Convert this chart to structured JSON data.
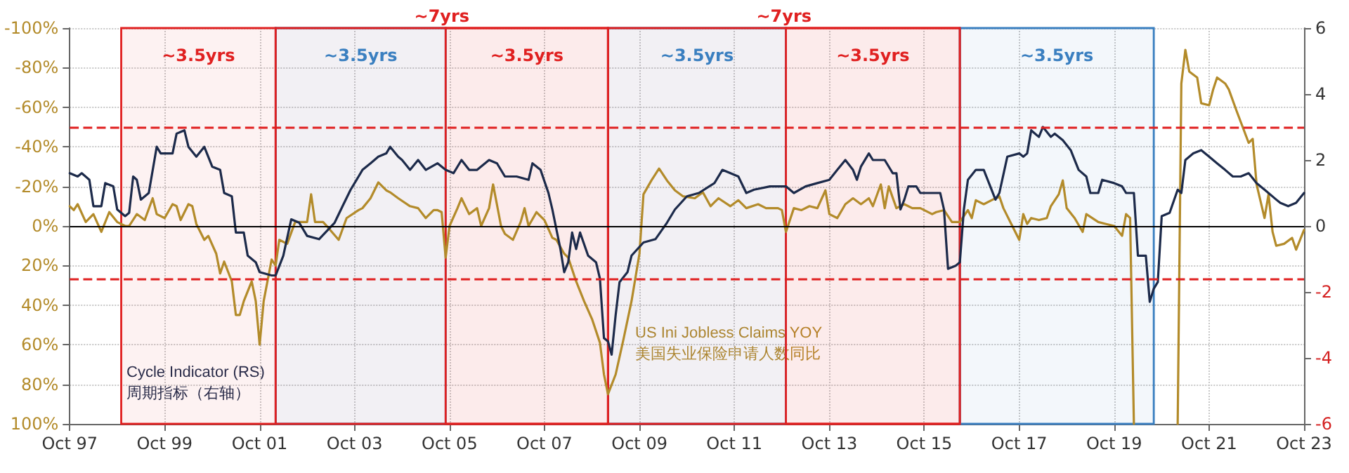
{
  "chart_data": {
    "type": "line",
    "ylabel": null,
    "xlim": [
      "1997-10",
      "2023-10"
    ],
    "xticks": [
      {
        "value": "1997-10",
        "label": "Oct 97"
      },
      {
        "value": "1999-10",
        "label": "Oct 99"
      },
      {
        "value": "2001-10",
        "label": "Oct 01"
      },
      {
        "value": "2003-10",
        "label": "Oct 03"
      },
      {
        "value": "2005-10",
        "label": "Oct 05"
      },
      {
        "value": "2007-10",
        "label": "Oct 07"
      },
      {
        "value": "2009-10",
        "label": "Oct 09"
      },
      {
        "value": "2011-10",
        "label": "Oct 11"
      },
      {
        "value": "2013-10",
        "label": "Oct 13"
      },
      {
        "value": "2015-10",
        "label": "Oct 15"
      },
      {
        "value": "2017-10",
        "label": "Oct 17"
      },
      {
        "value": "2019-10",
        "label": "Oct 19"
      },
      {
        "value": "2021-10",
        "label": "Oct 21"
      },
      {
        "value": "2023-10",
        "label": "Oct 23"
      }
    ],
    "ylim": [
      100,
      -100
    ],
    "yticks": [
      {
        "value": -100,
        "label": "-100%"
      },
      {
        "value": -80,
        "label": "-80%"
      },
      {
        "value": -60,
        "label": "-60%"
      },
      {
        "value": -40,
        "label": "-40%"
      },
      {
        "value": -20,
        "label": "-20%"
      },
      {
        "value": 0,
        "label": "0%"
      },
      {
        "value": 20,
        "label": "20%"
      },
      {
        "value": 40,
        "label": "40%"
      },
      {
        "value": 60,
        "label": "60%"
      },
      {
        "value": 80,
        "label": "80%"
      },
      {
        "value": 100,
        "label": "100%"
      }
    ],
    "y2lim": [
      -6,
      6
    ],
    "y2ticks": [
      -6,
      -4,
      -2,
      0,
      2,
      4,
      6
    ],
    "grid": true,
    "legend": false,
    "line_style": "solid",
    "series": [
      {
        "name": "US Ini Jobless Claims YOY\n美国失业保险申请人数同比",
        "color": "#b38b2a",
        "axis": "y",
        "x": [
          "1997-10",
          "1997-11",
          "1997-12",
          "1998-02",
          "1998-04",
          "1998-06",
          "1998-08",
          "1998-10",
          "1998-12",
          "1999-01",
          "1999-03",
          "1999-05",
          "1999-07",
          "1999-08",
          "1999-10",
          "1999-12",
          "2000-01",
          "2000-02",
          "2000-04",
          "2000-05",
          "2000-06",
          "2000-08",
          "2000-09",
          "2000-11",
          "2000-12",
          "2001-01",
          "2001-03",
          "2001-04",
          "2001-05",
          "2001-06",
          "2001-08",
          "2001-09",
          "2001-10",
          "2001-11",
          "2002-01",
          "2002-02",
          "2002-03",
          "2002-05",
          "2002-07",
          "2002-10",
          "2002-11",
          "2002-12",
          "2003-02",
          "2003-03",
          "2003-06",
          "2003-08",
          "2003-11",
          "2003-12",
          "2004-02",
          "2004-04",
          "2004-06",
          "2004-07",
          "2004-09",
          "2004-12",
          "2005-02",
          "2005-04",
          "2005-06",
          "2005-07",
          "2005-08",
          "2005-09",
          "2005-10",
          "2005-12",
          "2006-01",
          "2006-03",
          "2006-05",
          "2006-06",
          "2006-08",
          "2006-09",
          "2006-11",
          "2006-12",
          "2007-02",
          "2007-04",
          "2007-05",
          "2007-06",
          "2007-08",
          "2007-10",
          "2007-12",
          "2008-01",
          "2008-03",
          "2008-04",
          "2008-06",
          "2008-08",
          "2008-10",
          "2008-12",
          "2009-01",
          "2009-02",
          "2009-04",
          "2009-06",
          "2009-08",
          "2009-10",
          "2009-11",
          "2010-01",
          "2010-03",
          "2010-05",
          "2010-07",
          "2010-09",
          "2010-12",
          "2011-02",
          "2011-04",
          "2011-06",
          "2011-09",
          "2011-11",
          "2012-01",
          "2012-04",
          "2012-06",
          "2012-09",
          "2012-10",
          "2012-11",
          "2013-01",
          "2013-03",
          "2013-05",
          "2013-07",
          "2013-09",
          "2013-10",
          "2013-12",
          "2014-02",
          "2014-04",
          "2014-06",
          "2014-08",
          "2014-09",
          "2014-11",
          "2014-12",
          "2015-01",
          "2015-03",
          "2015-05",
          "2015-07",
          "2015-09",
          "2015-12",
          "2016-01",
          "2016-03",
          "2016-05",
          "2016-07",
          "2016-09",
          "2016-10",
          "2016-11",
          "2017-01",
          "2017-03",
          "2017-05",
          "2017-06",
          "2017-08",
          "2017-10",
          "2017-11",
          "2017-12",
          "2018-01",
          "2018-03",
          "2018-05",
          "2018-06",
          "2018-08",
          "2018-09",
          "2018-10",
          "2018-12",
          "2019-02",
          "2019-03",
          "2019-06",
          "2019-08",
          "2019-10",
          "2019-12",
          "2020-01",
          "2020-02",
          "2020-03",
          "2020-09",
          "2021-02",
          "2021-03",
          "2021-04",
          "2021-05",
          "2021-07",
          "2021-08",
          "2021-10",
          "2021-11",
          "2021-12",
          "2022-02",
          "2022-03",
          "2022-05",
          "2022-08",
          "2022-09",
          "2022-10",
          "2022-12",
          "2023-01",
          "2023-02",
          "2023-03",
          "2023-05",
          "2023-07",
          "2023-08",
          "2023-10"
        ],
        "values": [
          -10,
          -8,
          -11,
          -2,
          -6,
          3,
          -7,
          -2,
          0,
          0,
          -6,
          -3,
          -14,
          -6,
          -4,
          -11,
          -10,
          -3,
          -11,
          -10,
          -1,
          7,
          5,
          14,
          24,
          18,
          28,
          45,
          45,
          38,
          28,
          38,
          60,
          38,
          17,
          20,
          7,
          9,
          -2,
          -2,
          -16,
          -2,
          -2,
          0,
          7,
          -4,
          -8,
          -9,
          -14,
          -22,
          -18,
          -17,
          -14,
          -10,
          -9,
          -4,
          -8,
          -8,
          -7,
          16,
          0,
          -9,
          -14,
          -6,
          -9,
          0,
          -9,
          -21,
          0,
          4,
          7,
          -2,
          -9,
          0,
          -7,
          -3,
          6,
          7,
          14,
          16,
          28,
          38,
          47,
          59,
          75,
          85,
          75,
          57,
          38,
          14,
          -16,
          -23,
          -29,
          -23,
          -18,
          -15,
          -14,
          -17,
          -10,
          -14,
          -10,
          -13,
          -9,
          -11,
          -9,
          -9,
          -8,
          3,
          -9,
          -8,
          -10,
          -9,
          -18,
          -6,
          -4,
          -11,
          -14,
          -11,
          -14,
          -10,
          -21,
          -9,
          -20,
          -9,
          -11,
          -9,
          -9,
          -6,
          -7,
          -8,
          -2,
          -2,
          -8,
          -4,
          -13,
          -11,
          -13,
          -15,
          -9,
          -1,
          7,
          -6,
          -1,
          -4,
          -3,
          -4,
          -10,
          -16,
          -23,
          -9,
          -4,
          3,
          -6,
          -2,
          -1,
          0,
          5,
          -6,
          -4,
          100,
          null,
          100,
          -72,
          -89,
          -78,
          -75,
          -62,
          -61,
          -69,
          -75,
          -72,
          -69,
          -58,
          -42,
          -44,
          -21,
          -4,
          -16,
          3,
          10,
          9,
          6,
          12,
          2
        ]
      },
      {
        "name": "Cycle Indicator (RS)\n周期指标（右轴）",
        "color": "#1c2a4a",
        "axis": "y2",
        "x": [
          "1997-10",
          "1997-12",
          "1998-01",
          "1998-03",
          "1998-04",
          "1998-06",
          "1998-07",
          "1998-09",
          "1998-10",
          "1998-12",
          "1999-01",
          "1999-02",
          "1999-03",
          "1999-04",
          "1999-06",
          "1999-08",
          "1999-09",
          "1999-12",
          "2000-01",
          "2000-03",
          "2000-04",
          "2000-06",
          "2000-08",
          "2000-10",
          "2000-12",
          "2001-01",
          "2001-03",
          "2001-04",
          "2001-06",
          "2001-07",
          "2001-09",
          "2001-10",
          "2002-01",
          "2002-02",
          "2002-04",
          "2002-06",
          "2002-08",
          "2002-10",
          "2003-01",
          "2003-05",
          "2003-07",
          "2003-09",
          "2003-11",
          "2003-12",
          "2004-02",
          "2004-04",
          "2004-06",
          "2004-07",
          "2004-09",
          "2004-10",
          "2004-12",
          "2005-02",
          "2005-04",
          "2005-07",
          "2005-09",
          "2005-11",
          "2006-01",
          "2006-03",
          "2006-05",
          "2006-08",
          "2006-10",
          "2006-12",
          "2007-03",
          "2007-06",
          "2007-07",
          "2007-09",
          "2007-11",
          "2007-12",
          "2008-02",
          "2008-03",
          "2008-04",
          "2008-05",
          "2008-06",
          "2008-07",
          "2008-09",
          "2008-11",
          "2008-12",
          "2009-01",
          "2009-02",
          "2009-03",
          "2009-04",
          "2009-05",
          "2009-07",
          "2009-08",
          "2009-11",
          "2010-02",
          "2010-05",
          "2010-07",
          "2010-10",
          "2011-01",
          "2011-05",
          "2011-07",
          "2011-09",
          "2011-11",
          "2012-01",
          "2012-03",
          "2012-07",
          "2012-11",
          "2013-01",
          "2013-04",
          "2013-07",
          "2013-10",
          "2013-12",
          "2014-02",
          "2014-04",
          "2014-05",
          "2014-06",
          "2014-08",
          "2014-09",
          "2014-12",
          "2015-02",
          "2015-03",
          "2015-04",
          "2015-05",
          "2015-06",
          "2015-08",
          "2015-09",
          "2015-12",
          "2016-02",
          "2016-03",
          "2016-04",
          "2016-06",
          "2016-07",
          "2016-08",
          "2016-09",
          "2016-11",
          "2017-01",
          "2017-04",
          "2017-05",
          "2017-07",
          "2017-10",
          "2017-11",
          "2017-12",
          "2018-01",
          "2018-03",
          "2018-04",
          "2018-06",
          "2018-07",
          "2018-09",
          "2018-11",
          "2019-01",
          "2019-03",
          "2019-04",
          "2019-06",
          "2019-07",
          "2019-10",
          "2019-12",
          "2020-01",
          "2020-03",
          "2020-04",
          "2020-06",
          "2020-07",
          "2020-08",
          "2020-09",
          "2020-10",
          "2020-12",
          "2021-02",
          "2021-03",
          "2021-04",
          "2021-06",
          "2021-08",
          "2021-10",
          "2021-12",
          "2022-02",
          "2022-04",
          "2022-06",
          "2022-08",
          "2022-10",
          "2022-12",
          "2023-03",
          "2023-04",
          "2023-06",
          "2023-08",
          "2023-10"
        ],
        "values": [
          1.6,
          1.5,
          1.6,
          1.4,
          0.6,
          0.6,
          1.3,
          1.2,
          0.5,
          0.3,
          0.4,
          1.5,
          1.4,
          0.8,
          1.0,
          2.4,
          2.2,
          2.2,
          2.8,
          2.9,
          2.4,
          2.1,
          2.4,
          1.8,
          1.7,
          1.0,
          0.9,
          -0.2,
          -0.2,
          -0.9,
          -1.1,
          -1.4,
          -1.5,
          -1.5,
          -0.9,
          0.2,
          0.1,
          -0.3,
          -0.4,
          0.1,
          0.6,
          1.1,
          1.5,
          1.7,
          1.9,
          2.1,
          2.2,
          2.4,
          2.1,
          2.0,
          1.7,
          2.0,
          1.7,
          1.9,
          1.7,
          1.6,
          2.0,
          1.7,
          1.7,
          2.0,
          1.9,
          1.5,
          1.5,
          1.4,
          1.9,
          1.7,
          1.0,
          0.5,
          -0.7,
          -1.4,
          -1.1,
          -0.2,
          -0.7,
          -0.2,
          -0.9,
          -1.1,
          -1.6,
          -3.4,
          -3.5,
          -3.9,
          -2.7,
          -1.7,
          -1.4,
          -0.9,
          -0.5,
          -0.4,
          0.1,
          0.5,
          0.9,
          1.0,
          1.3,
          1.7,
          1.6,
          1.5,
          1.0,
          1.1,
          1.2,
          1.2,
          1.0,
          1.2,
          1.3,
          1.4,
          1.7,
          2.0,
          1.7,
          1.4,
          1.8,
          2.2,
          2.0,
          2.0,
          1.6,
          1.6,
          0.5,
          0.8,
          1.2,
          1.2,
          1.0,
          1.0,
          1.0,
          0.5,
          -1.3,
          -1.2,
          -1.1,
          0.5,
          1.4,
          1.7,
          1.7,
          0.8,
          1.0,
          2.1,
          2.2,
          2.1,
          2.2,
          2.9,
          2.7,
          3.0,
          2.7,
          2.8,
          2.6,
          2.3,
          1.7,
          1.5,
          1.0,
          1.0,
          1.4,
          1.3,
          1.2,
          1.0,
          1.0,
          -0.9,
          -0.9,
          -2.3,
          -1.9,
          -1.7,
          0.3,
          0.4,
          1.1,
          1.0,
          2.0,
          2.2,
          2.3,
          2.1,
          1.9,
          1.7,
          1.5,
          1.5,
          1.6,
          1.3,
          1.1,
          0.8,
          0.7,
          0.6,
          0.7,
          1.0
        ]
      }
    ],
    "ref_lines": [
      {
        "axis": "y2",
        "value": 0,
        "color": "#000000",
        "line_style": "solid"
      },
      {
        "axis": "y2",
        "value": 3,
        "color": "#e02020",
        "line_style": "dashed"
      },
      {
        "axis": "y2",
        "value": -1.6,
        "color": "#e02020",
        "line_style": "dashed"
      }
    ],
    "bands": [
      {
        "axis": "x",
        "from": "1998-11",
        "to": "2002-02",
        "label": "~3.5yrs",
        "color": "#e02020"
      },
      {
        "axis": "x",
        "from": "2002-02",
        "to": "2005-09",
        "label": "~3.5yrs",
        "color": "#3a7fc0"
      },
      {
        "axis": "x",
        "from": "2005-09",
        "to": "2009-02",
        "label": "~3.5yrs",
        "color": "#e02020"
      },
      {
        "axis": "x",
        "from": "2009-02",
        "to": "2012-11",
        "label": "~3.5yrs",
        "color": "#3a7fc0"
      },
      {
        "axis": "x",
        "from": "2012-11",
        "to": "2016-07",
        "label": "~3.5yrs",
        "color": "#e02020"
      },
      {
        "axis": "x",
        "from": "2016-07",
        "to": "2020-08",
        "label": "~3.5yrs",
        "color": "#3a7fc0"
      },
      {
        "axis": "x",
        "from": "2002-02",
        "to": "2009-02",
        "label": "~7yrs",
        "color": "#e02020"
      },
      {
        "axis": "x",
        "from": "2009-02",
        "to": "2016-07",
        "label": "~7yrs",
        "color": "#e02020"
      }
    ]
  }
}
